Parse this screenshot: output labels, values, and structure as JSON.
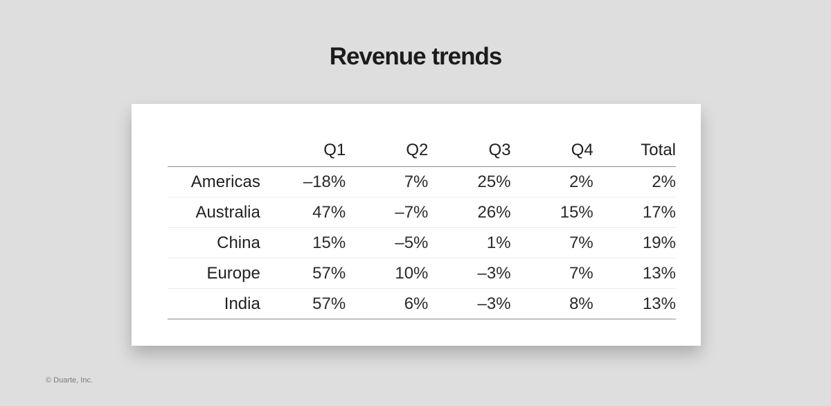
{
  "title": "Revenue trends",
  "copyright": "© Duarte, Inc.",
  "chart_data": {
    "type": "table",
    "title": "Revenue trends",
    "columns": [
      "",
      "Q1",
      "Q2",
      "Q3",
      "Q4",
      "Total"
    ],
    "rows": [
      {
        "region": "Americas",
        "values": [
          "–18%",
          "7%",
          "25%",
          "2%",
          "2%"
        ]
      },
      {
        "region": "Australia",
        "values": [
          "47%",
          "–7%",
          "26%",
          "15%",
          "17%"
        ]
      },
      {
        "region": "China",
        "values": [
          "15%",
          "–5%",
          "1%",
          "7%",
          "19%"
        ]
      },
      {
        "region": "Europe",
        "values": [
          "57%",
          "10%",
          "–3%",
          "7%",
          "13%"
        ]
      },
      {
        "region": "India",
        "values": [
          "57%",
          "6%",
          "–3%",
          "8%",
          "13%"
        ]
      }
    ]
  }
}
